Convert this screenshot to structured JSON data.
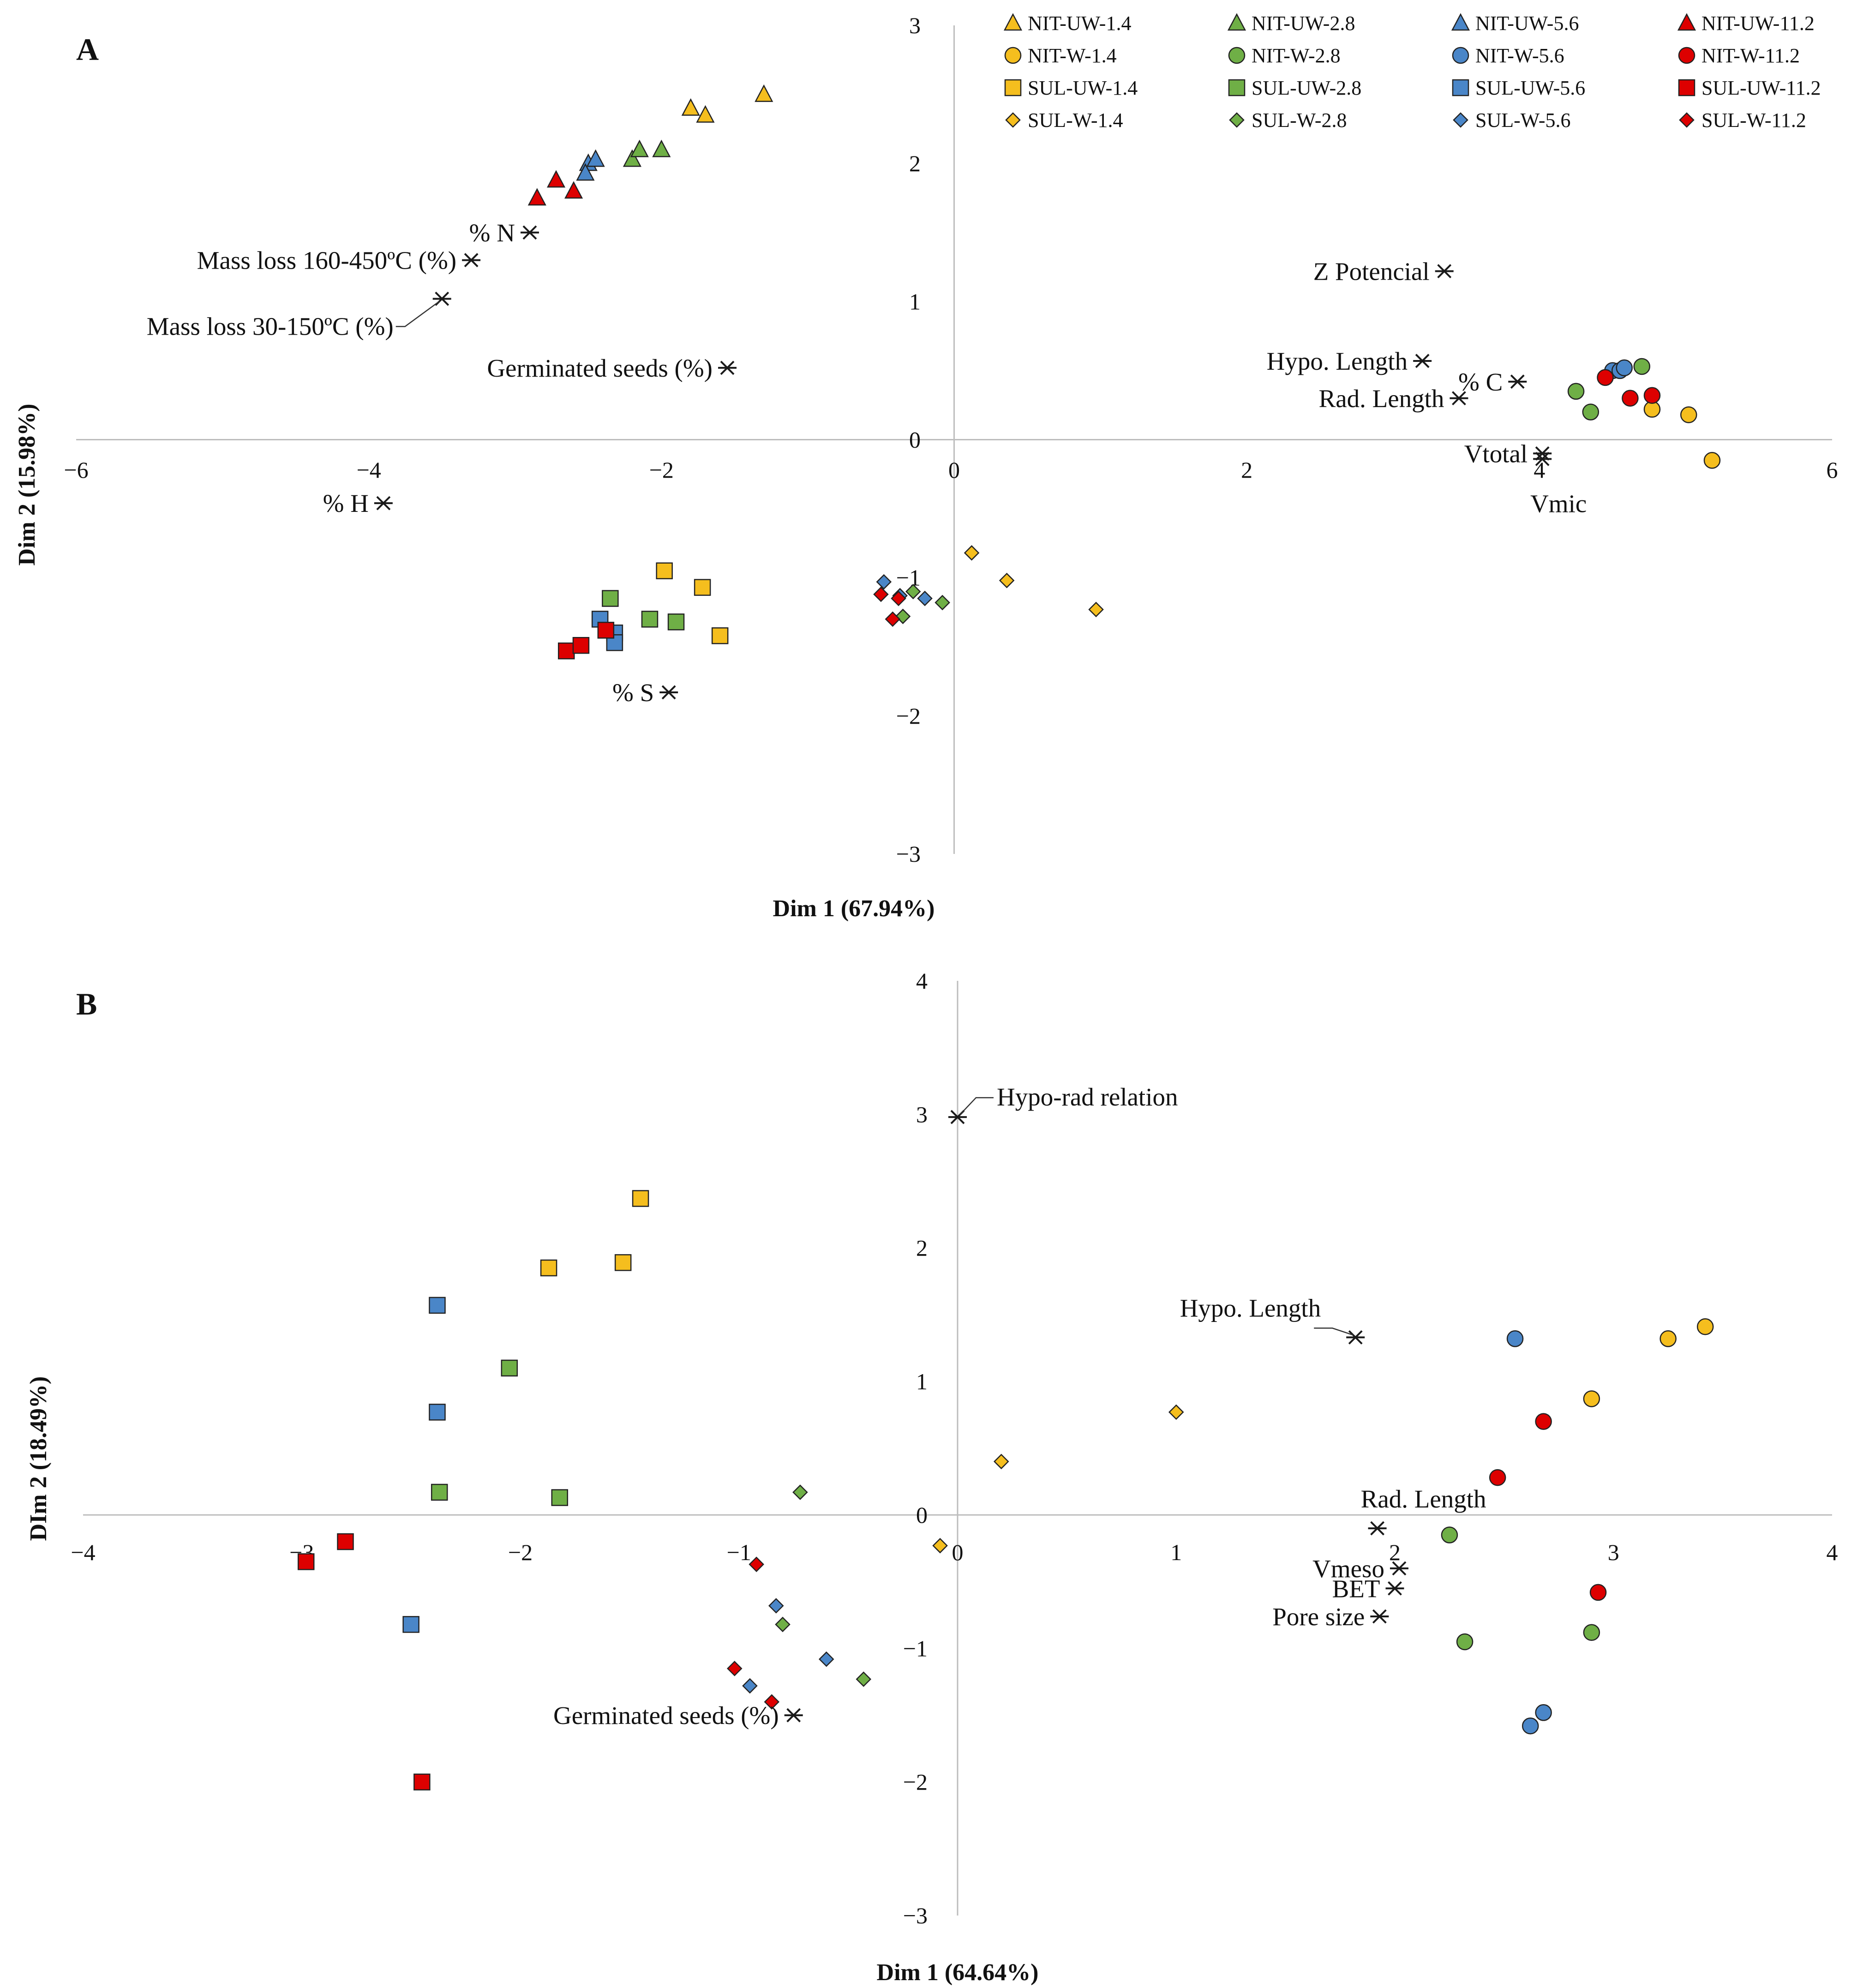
{
  "legend": [
    {
      "name": "NIT-UW-1.4",
      "shape": "triangle",
      "color": "#F5BE1E"
    },
    {
      "name": "NIT-UW-2.8",
      "shape": "triangle",
      "color": "#6FAF46"
    },
    {
      "name": "NIT-UW-5.6",
      "shape": "triangle",
      "color": "#4A86C8"
    },
    {
      "name": "NIT-UW-11.2",
      "shape": "triangle",
      "color": "#DD0000"
    },
    {
      "name": "NIT-W-1.4",
      "shape": "circle",
      "color": "#F5BE1E"
    },
    {
      "name": "NIT-W-2.8",
      "shape": "circle",
      "color": "#6FAF46"
    },
    {
      "name": "NIT-W-5.6",
      "shape": "circle",
      "color": "#4A86C8"
    },
    {
      "name": "NIT-W-11.2",
      "shape": "circle",
      "color": "#DD0000"
    },
    {
      "name": "SUL-UW-1.4",
      "shape": "square",
      "color": "#F5BE1E"
    },
    {
      "name": "SUL-UW-2.8",
      "shape": "square",
      "color": "#6FAF46"
    },
    {
      "name": "SUL-UW-5.6",
      "shape": "square",
      "color": "#4A86C8"
    },
    {
      "name": "SUL-UW-11.2",
      "shape": "square",
      "color": "#DD0000"
    },
    {
      "name": "SUL-W-1.4",
      "shape": "diamond",
      "color": "#F5BE1E"
    },
    {
      "name": "SUL-W-2.8",
      "shape": "diamond",
      "color": "#6FAF46"
    },
    {
      "name": "SUL-W-5.6",
      "shape": "diamond",
      "color": "#4A86C8"
    },
    {
      "name": "SUL-W-11.2",
      "shape": "diamond",
      "color": "#DD0000"
    }
  ],
  "chart_data": [
    {
      "type": "scatter",
      "panel": "A",
      "xlabel": "Dim 1 (67.94%)",
      "ylabel": "Dim 2 (15.98%)",
      "xlim": [
        -6,
        6
      ],
      "ylim": [
        -3,
        3
      ],
      "xticks": [
        "−6",
        "−4",
        "−2",
        "0",
        "2",
        "4",
        "6"
      ],
      "yticks": [
        "3",
        "2",
        "1",
        "0",
        "−1",
        "−2",
        "−3"
      ],
      "points": [
        {
          "series": "NIT-UW-1.4",
          "x": -1.3,
          "y": 2.5
        },
        {
          "series": "NIT-UW-1.4",
          "x": -1.8,
          "y": 2.4
        },
        {
          "series": "NIT-UW-1.4",
          "x": -1.7,
          "y": 2.35
        },
        {
          "series": "NIT-UW-2.8",
          "x": -2.2,
          "y": 2.03
        },
        {
          "series": "NIT-UW-2.8",
          "x": -2.15,
          "y": 2.1
        },
        {
          "series": "NIT-UW-2.8",
          "x": -2.0,
          "y": 2.1
        },
        {
          "series": "NIT-UW-5.6",
          "x": -2.5,
          "y": 2.0
        },
        {
          "series": "NIT-UW-5.6",
          "x": -2.45,
          "y": 2.03
        },
        {
          "series": "NIT-UW-5.6",
          "x": -2.52,
          "y": 1.93
        },
        {
          "series": "NIT-UW-11.2",
          "x": -2.85,
          "y": 1.75
        },
        {
          "series": "NIT-UW-11.2",
          "x": -2.72,
          "y": 1.88
        },
        {
          "series": "NIT-UW-11.2",
          "x": -2.6,
          "y": 1.8
        },
        {
          "series": "NIT-W-1.4",
          "x": 5.02,
          "y": 0.18
        },
        {
          "series": "NIT-W-1.4",
          "x": 5.18,
          "y": -0.15
        },
        {
          "series": "NIT-W-1.4",
          "x": 4.77,
          "y": 0.22
        },
        {
          "series": "NIT-W-2.8",
          "x": 4.25,
          "y": 0.35
        },
        {
          "series": "NIT-W-2.8",
          "x": 4.35,
          "y": 0.2
        },
        {
          "series": "NIT-W-2.8",
          "x": 4.7,
          "y": 0.53
        },
        {
          "series": "NIT-W-5.6",
          "x": 4.5,
          "y": 0.5
        },
        {
          "series": "NIT-W-5.6",
          "x": 4.55,
          "y": 0.5
        },
        {
          "series": "NIT-W-5.6",
          "x": 4.58,
          "y": 0.52
        },
        {
          "series": "NIT-W-11.2",
          "x": 4.45,
          "y": 0.45
        },
        {
          "series": "NIT-W-11.2",
          "x": 4.62,
          "y": 0.3
        },
        {
          "series": "NIT-W-11.2",
          "x": 4.77,
          "y": 0.32
        },
        {
          "series": "SUL-UW-1.4",
          "x": -1.98,
          "y": -0.95
        },
        {
          "series": "SUL-UW-1.4",
          "x": -1.72,
          "y": -1.07
        },
        {
          "series": "SUL-UW-1.4",
          "x": -1.6,
          "y": -1.42
        },
        {
          "series": "SUL-UW-2.8",
          "x": -2.35,
          "y": -1.15
        },
        {
          "series": "SUL-UW-2.8",
          "x": -2.08,
          "y": -1.3
        },
        {
          "series": "SUL-UW-2.8",
          "x": -1.9,
          "y": -1.32
        },
        {
          "series": "SUL-UW-5.6",
          "x": -2.42,
          "y": -1.3
        },
        {
          "series": "SUL-UW-5.6",
          "x": -2.32,
          "y": -1.4
        },
        {
          "series": "SUL-UW-5.6",
          "x": -2.32,
          "y": -1.47
        },
        {
          "series": "SUL-UW-11.2",
          "x": -2.65,
          "y": -1.53
        },
        {
          "series": "SUL-UW-11.2",
          "x": -2.55,
          "y": -1.49
        },
        {
          "series": "SUL-UW-11.2",
          "x": -2.38,
          "y": -1.38
        },
        {
          "series": "SUL-W-1.4",
          "x": 0.12,
          "y": -0.82
        },
        {
          "series": "SUL-W-1.4",
          "x": 0.36,
          "y": -1.02
        },
        {
          "series": "SUL-W-1.4",
          "x": 0.97,
          "y": -1.23
        },
        {
          "series": "SUL-W-2.8",
          "x": -0.28,
          "y": -1.1
        },
        {
          "series": "SUL-W-2.8",
          "x": -0.35,
          "y": -1.28
        },
        {
          "series": "SUL-W-2.8",
          "x": -0.08,
          "y": -1.18
        },
        {
          "series": "SUL-W-5.6",
          "x": -0.48,
          "y": -1.03
        },
        {
          "series": "SUL-W-5.6",
          "x": -0.37,
          "y": -1.13
        },
        {
          "series": "SUL-W-5.6",
          "x": -0.2,
          "y": -1.15
        },
        {
          "series": "SUL-W-11.2",
          "x": -0.5,
          "y": -1.12
        },
        {
          "series": "SUL-W-11.2",
          "x": -0.38,
          "y": -1.15
        },
        {
          "series": "SUL-W-11.2",
          "x": -0.42,
          "y": -1.3
        }
      ],
      "variables": [
        {
          "name": "% N",
          "x": -2.9,
          "y": 1.5,
          "anchor": "end"
        },
        {
          "name": "Mass loss 160-450ºC (%)",
          "x": -3.3,
          "y": 1.3,
          "anchor": "end"
        },
        {
          "name": "Mass loss 30-150ºC (%)",
          "x": -3.5,
          "y": 1.02,
          "anchor": "end",
          "leader": true
        },
        {
          "name": "Germinated seeds (%)",
          "x": -1.55,
          "y": 0.52,
          "anchor": "end"
        },
        {
          "name": "% H",
          "x": -3.9,
          "y": -0.46,
          "anchor": "end"
        },
        {
          "name": "% S",
          "x": -1.95,
          "y": -1.83,
          "anchor": "end"
        },
        {
          "name": "Z Potencial",
          "x": 3.35,
          "y": 1.22,
          "anchor": "end"
        },
        {
          "name": "Hypo. Length",
          "x": 3.2,
          "y": 0.57,
          "anchor": "end"
        },
        {
          "name": "% C",
          "x": 3.85,
          "y": 0.42,
          "anchor": "end"
        },
        {
          "name": "Rad. Length",
          "x": 3.45,
          "y": 0.3,
          "anchor": "end"
        },
        {
          "name": "Vtotal",
          "x": 4.02,
          "y": -0.1,
          "anchor": "end"
        },
        {
          "name": "Vmic",
          "x": 4.02,
          "y": -0.14,
          "anchor": "below"
        }
      ]
    },
    {
      "type": "scatter",
      "panel": "B",
      "xlabel": "Dim 1 (64.64%)",
      "ylabel": "DIm 2 (18.49%)",
      "xlim": [
        -4,
        4
      ],
      "ylim": [
        -3,
        4
      ],
      "xticks": [
        "−4",
        "−3",
        "−2",
        "−1",
        "0",
        "1",
        "2",
        "3",
        "4"
      ],
      "yticks": [
        "4",
        "3",
        "2",
        "1",
        "0",
        "−1",
        "−2",
        "−3"
      ],
      "points": [
        {
          "series": "NIT-W-1.4",
          "x": 3.25,
          "y": 1.32
        },
        {
          "series": "NIT-W-1.4",
          "x": 3.42,
          "y": 1.41
        },
        {
          "series": "NIT-W-1.4",
          "x": 2.9,
          "y": 0.87
        },
        {
          "series": "NIT-W-2.8",
          "x": 2.25,
          "y": -0.15
        },
        {
          "series": "NIT-W-2.8",
          "x": 2.9,
          "y": -0.88
        },
        {
          "series": "NIT-W-2.8",
          "x": 2.32,
          "y": -0.95
        },
        {
          "series": "NIT-W-5.6",
          "x": 2.55,
          "y": 1.32
        },
        {
          "series": "NIT-W-5.6",
          "x": 2.68,
          "y": -1.48
        },
        {
          "series": "NIT-W-5.6",
          "x": 2.62,
          "y": -1.58
        },
        {
          "series": "NIT-W-11.2",
          "x": 2.68,
          "y": 0.7
        },
        {
          "series": "NIT-W-11.2",
          "x": 2.47,
          "y": 0.28
        },
        {
          "series": "NIT-W-11.2",
          "x": 2.93,
          "y": -0.58
        },
        {
          "series": "SUL-UW-1.4",
          "x": -1.45,
          "y": 2.37
        },
        {
          "series": "SUL-UW-1.4",
          "x": -1.87,
          "y": 1.85
        },
        {
          "series": "SUL-UW-1.4",
          "x": -1.53,
          "y": 1.89
        },
        {
          "series": "SUL-UW-2.8",
          "x": -2.05,
          "y": 1.1
        },
        {
          "series": "SUL-UW-2.8",
          "x": -2.37,
          "y": 0.17
        },
        {
          "series": "SUL-UW-2.8",
          "x": -1.82,
          "y": 0.13
        },
        {
          "series": "SUL-UW-5.6",
          "x": -2.38,
          "y": 1.57
        },
        {
          "series": "SUL-UW-5.6",
          "x": -2.38,
          "y": 0.77
        },
        {
          "series": "SUL-UW-5.6",
          "x": -2.5,
          "y": -0.82
        },
        {
          "series": "SUL-UW-11.2",
          "x": -2.8,
          "y": -0.2
        },
        {
          "series": "SUL-UW-11.2",
          "x": -2.98,
          "y": -0.35
        },
        {
          "series": "SUL-UW-11.2",
          "x": -2.45,
          "y": -2.0
        },
        {
          "series": "SUL-W-1.4",
          "x": 1.0,
          "y": 0.77
        },
        {
          "series": "SUL-W-1.4",
          "x": 0.2,
          "y": 0.4
        },
        {
          "series": "SUL-W-1.4",
          "x": -0.08,
          "y": -0.23
        },
        {
          "series": "SUL-W-2.8",
          "x": -0.72,
          "y": 0.17
        },
        {
          "series": "SUL-W-2.8",
          "x": -0.8,
          "y": -0.82
        },
        {
          "series": "SUL-W-2.8",
          "x": -0.43,
          "y": -1.23
        },
        {
          "series": "SUL-W-5.6",
          "x": -0.83,
          "y": -0.68
        },
        {
          "series": "SUL-W-5.6",
          "x": -0.6,
          "y": -1.08
        },
        {
          "series": "SUL-W-5.6",
          "x": -0.95,
          "y": -1.28
        },
        {
          "series": "SUL-W-11.2",
          "x": -0.92,
          "y": -0.37
        },
        {
          "series": "SUL-W-11.2",
          "x": -1.02,
          "y": -1.15
        },
        {
          "series": "SUL-W-11.2",
          "x": -0.85,
          "y": -1.4
        }
      ],
      "variables": [
        {
          "name": "Hypo-rad relation",
          "x": 0.0,
          "y": 2.98,
          "anchor": "start",
          "leader": true
        },
        {
          "name": "Hypo. Length",
          "x": 1.82,
          "y": 1.33,
          "anchor": "end",
          "leader": true
        },
        {
          "name": "Rad. Length",
          "x": 1.92,
          "y": -0.1,
          "anchor": "middle-above"
        },
        {
          "name": "Vmeso",
          "x": 2.02,
          "y": -0.4,
          "anchor": "end"
        },
        {
          "name": "BET",
          "x": 2.0,
          "y": -0.55,
          "anchor": "end"
        },
        {
          "name": "Pore size",
          "x": 1.93,
          "y": -0.76,
          "anchor": "end"
        },
        {
          "name": "Germinated seeds (%)",
          "x": -0.75,
          "y": -1.5,
          "anchor": "end"
        }
      ]
    }
  ]
}
